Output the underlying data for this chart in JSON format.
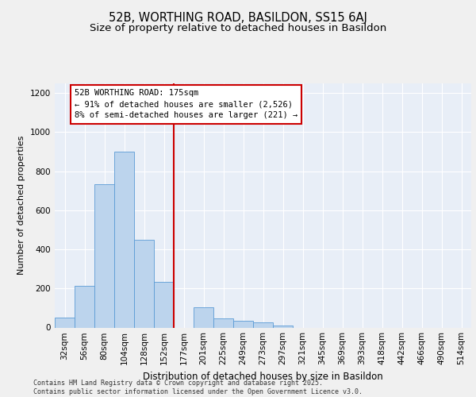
{
  "title1": "52B, WORTHING ROAD, BASILDON, SS15 6AJ",
  "title2": "Size of property relative to detached houses in Basildon",
  "xlabel": "Distribution of detached houses by size in Basildon",
  "ylabel": "Number of detached properties",
  "bar_color": "#bcd4ed",
  "bar_edge_color": "#5b9bd5",
  "background_color": "#e8eef7",
  "grid_color": "#ffffff",
  "bin_labels": [
    "32sqm",
    "56sqm",
    "80sqm",
    "104sqm",
    "128sqm",
    "152sqm",
    "177sqm",
    "201sqm",
    "225sqm",
    "249sqm",
    "273sqm",
    "297sqm",
    "321sqm",
    "345sqm",
    "369sqm",
    "393sqm",
    "418sqm",
    "442sqm",
    "466sqm",
    "490sqm",
    "514sqm"
  ],
  "bar_values": [
    50,
    215,
    735,
    900,
    450,
    235,
    0,
    105,
    45,
    35,
    25,
    10,
    0,
    0,
    0,
    0,
    0,
    0,
    0,
    0,
    0
  ],
  "vline_x": 6.0,
  "vline_color": "#cc0000",
  "annotation_title": "52B WORTHING ROAD: 175sqm",
  "annotation_line1": "← 91% of detached houses are smaller (2,526)",
  "annotation_line2": "8% of semi-detached houses are larger (221) →",
  "annotation_box_color": "#ffffff",
  "annotation_box_edge": "#cc0000",
  "ylim": [
    0,
    1250
  ],
  "yticks": [
    0,
    200,
    400,
    600,
    800,
    1000,
    1200
  ],
  "footer": "Contains HM Land Registry data © Crown copyright and database right 2025.\nContains public sector information licensed under the Open Government Licence v3.0.",
  "title1_fontsize": 10.5,
  "title2_fontsize": 9.5,
  "axis_fontsize": 7.5,
  "ylabel_fontsize": 8,
  "xlabel_fontsize": 8.5,
  "annotation_fontsize": 7.5,
  "footer_fontsize": 6.0,
  "fig_bg": "#f0f0f0"
}
